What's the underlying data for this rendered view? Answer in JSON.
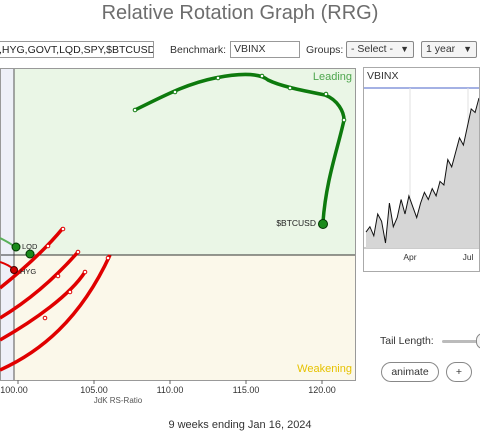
{
  "page": {
    "title": "Relative Rotation Graph (RRG)"
  },
  "toolbar": {
    "symbols_value": ",HYG,GOVT,LQD,SPY,$BTCUSD",
    "benchmark_label": "Benchmark:",
    "benchmark_value": "VBINX",
    "groups_label": "Groups:",
    "groups_value": "- Select -",
    "period_value": "1 year"
  },
  "rrg": {
    "quadrant_leading": "Leading",
    "quadrant_weakening": "Weakening",
    "x_axis_label": "JdK RS-Ratio",
    "x_ticks": [
      "100.00",
      "105.00",
      "110.00",
      "115.00",
      "120.00"
    ],
    "colors": {
      "leading_bg": "#eaf6e6",
      "weakening_bg": "#fbf8ea",
      "btc_tail": "#0d7a0d",
      "red_tail": "#e00000"
    },
    "labels": {
      "btc": "$BTCUSD",
      "lqd": "LQD",
      "hyg": "HYG"
    }
  },
  "mini_chart": {
    "title": "VBINX",
    "x_ticks": [
      "Apr",
      "Jul"
    ],
    "values": [
      52,
      55,
      50,
      62,
      58,
      46,
      68,
      55,
      60,
      70,
      62,
      72,
      66,
      60,
      68,
      74,
      70,
      76,
      72,
      80,
      78,
      92,
      88,
      96,
      104,
      100,
      110,
      120,
      118,
      126
    ]
  },
  "controls": {
    "tail_length_label": "Tail Length:",
    "animate_label": "animate",
    "plus_label": "+"
  },
  "footer": {
    "text": "9 weeks ending Jan 16, 2024"
  }
}
